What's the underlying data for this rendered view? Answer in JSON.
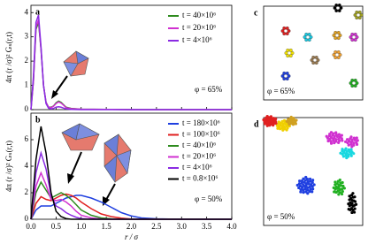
{
  "chart_data": [
    {
      "type": "line",
      "label": "a",
      "annotation": "φ = 65%",
      "ylabel": "4π (r /σ)² Gₛ(r,t)",
      "x": [
        0,
        0.05,
        0.1,
        0.15,
        0.2,
        0.25,
        0.3,
        0.35,
        0.4,
        0.45,
        0.5,
        0.55,
        0.6,
        0.65,
        0.7,
        0.8,
        1.0,
        1.5,
        2.0,
        4.0
      ],
      "series": [
        {
          "name": "t = 40×10⁶",
          "color": "#2e8b1e",
          "values": [
            0,
            1.2,
            3.3,
            3.6,
            2.5,
            1.0,
            0.3,
            0.1,
            0.1,
            0.15,
            0.28,
            0.35,
            0.3,
            0.2,
            0.1,
            0.05,
            0.02,
            0.01,
            0,
            0
          ]
        },
        {
          "name": "t = 20×10⁶",
          "color": "#d030d0",
          "values": [
            0,
            1.2,
            3.4,
            3.7,
            2.5,
            1.0,
            0.3,
            0.1,
            0.08,
            0.14,
            0.25,
            0.32,
            0.27,
            0.18,
            0.08,
            0.04,
            0.02,
            0.01,
            0,
            0
          ]
        },
        {
          "name": "t = 4×10⁶",
          "color": "#8a2be2",
          "values": [
            0,
            1.4,
            3.6,
            3.9,
            2.6,
            1.0,
            0.25,
            0.06,
            0.03,
            0.05,
            0.1,
            0.12,
            0.1,
            0.06,
            0.03,
            0.01,
            0,
            0,
            0,
            0
          ]
        }
      ],
      "xlim": [
        0,
        4
      ],
      "ylim": [
        0,
        4.3
      ],
      "xticks": [
        0,
        0.5,
        1,
        1.5,
        2,
        2.5,
        3,
        3.5,
        4
      ],
      "yticks": [
        0,
        1,
        2,
        3,
        4
      ],
      "legend": "upper right"
    },
    {
      "type": "line",
      "label": "b",
      "annotation": "φ = 50%",
      "ylabel": "4π (r /σ)² Gₛ(r,t)",
      "xlabel": "r / σ",
      "x": [
        0,
        0.1,
        0.2,
        0.3,
        0.4,
        0.5,
        0.6,
        0.7,
        0.8,
        0.9,
        1.0,
        1.2,
        1.4,
        1.6,
        1.8,
        2.0,
        2.2,
        2.5,
        3.0,
        4.0
      ],
      "series": [
        {
          "name": "t = 180×10⁶",
          "color": "#1f3fe0",
          "values": [
            0,
            0.7,
            1.0,
            1.0,
            1.0,
            1.2,
            1.4,
            1.6,
            1.7,
            1.8,
            1.8,
            1.6,
            1.3,
            0.9,
            0.5,
            0.25,
            0.1,
            0.03,
            0,
            0
          ]
        },
        {
          "name": "t = 100×10⁶",
          "color": "#e02020",
          "values": [
            0,
            1.2,
            1.7,
            1.5,
            1.4,
            1.6,
            1.8,
            1.9,
            1.8,
            1.6,
            1.3,
            0.8,
            0.4,
            0.2,
            0.08,
            0.02,
            0,
            0,
            0,
            0
          ]
        },
        {
          "name": "t = 40×10⁶",
          "color": "#2e8b1e",
          "values": [
            0,
            2.0,
            2.8,
            2.2,
            1.6,
            1.8,
            2.0,
            1.8,
            1.5,
            1.1,
            0.7,
            0.3,
            0.1,
            0.03,
            0,
            0,
            0,
            0,
            0,
            0
          ]
        },
        {
          "name": "t = 20×10⁶",
          "color": "#d030d0",
          "values": [
            0,
            2.5,
            3.5,
            2.6,
            1.5,
            1.4,
            1.5,
            1.3,
            1.0,
            0.6,
            0.3,
            0.1,
            0.02,
            0,
            0,
            0,
            0,
            0,
            0,
            0
          ]
        },
        {
          "name": "t = 4×10⁶",
          "color": "#8a2be2",
          "values": [
            0,
            3.5,
            5.0,
            3.8,
            1.8,
            1.0,
            0.8,
            0.5,
            0.3,
            0.15,
            0.05,
            0,
            0,
            0,
            0,
            0,
            0,
            0,
            0,
            0
          ]
        },
        {
          "name": "t = 0.8×10⁶",
          "color": "#000000",
          "values": [
            0,
            4.5,
            7.0,
            5.0,
            2.0,
            0.6,
            0.2,
            0.05,
            0,
            0,
            0,
            0,
            0,
            0,
            0,
            0,
            0,
            0,
            0,
            0
          ]
        }
      ],
      "xlim": [
        0,
        4
      ],
      "ylim": [
        0,
        8
      ],
      "xticks": [
        {
          "value": 0,
          "label": "0.0"
        },
        {
          "value": 0.5,
          "label": "0.5"
        },
        {
          "value": 1,
          "label": "1.0"
        },
        {
          "value": 1.5,
          "label": "1.5"
        },
        {
          "value": 2,
          "label": "2.0"
        },
        {
          "value": 2.5,
          "label": "2.5"
        },
        {
          "value": 3,
          "label": "3.0"
        },
        {
          "value": 3.5,
          "label": "3.5"
        },
        {
          "value": 4,
          "label": "4.0"
        }
      ],
      "yticks": [
        0,
        2,
        4,
        6
      ],
      "legend": "upper right"
    }
  ],
  "images": [
    {
      "label": "c",
      "annotation": "φ = 65%"
    },
    {
      "label": "d",
      "annotation": "φ = 50%"
    }
  ]
}
